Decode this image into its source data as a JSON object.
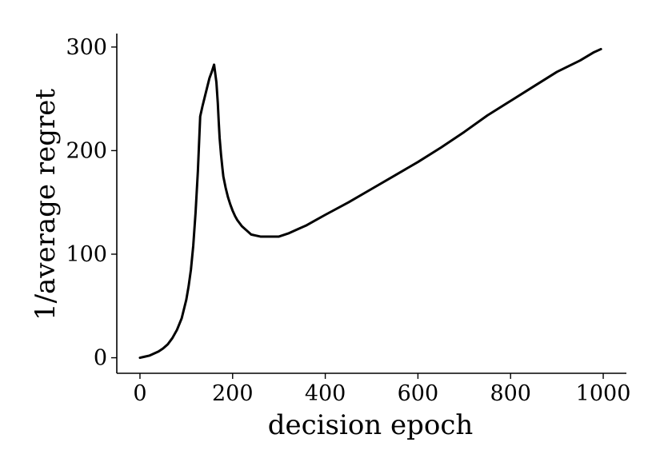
{
  "chart_data": {
    "type": "line",
    "title": "",
    "xlabel": "decision epoch",
    "ylabel": "1/average regret",
    "xlim": [
      -50,
      1050
    ],
    "ylim": [
      -15,
      313
    ],
    "xticks": [
      0,
      200,
      400,
      600,
      800,
      1000
    ],
    "yticks": [
      0,
      100,
      200,
      300
    ],
    "grid": false,
    "legend": "none",
    "line_color": "#000000",
    "series": [
      {
        "x": [
          0,
          10,
          20,
          30,
          40,
          50,
          60,
          70,
          80,
          90,
          100,
          105,
          110,
          115,
          120,
          125,
          130,
          135,
          140,
          145,
          150,
          155,
          160,
          165,
          168,
          170,
          172,
          175,
          178,
          180,
          185,
          190,
          195,
          200,
          205,
          210,
          220,
          230,
          240,
          250,
          260,
          270,
          280,
          290,
          300,
          320,
          340,
          360,
          380,
          400,
          450,
          500,
          550,
          600,
          650,
          700,
          750,
          800,
          850,
          900,
          950,
          980,
          995
        ],
        "values": [
          0,
          1,
          2,
          4,
          6,
          9,
          13,
          19,
          27,
          38,
          56,
          69,
          85,
          108,
          140,
          180,
          233,
          243,
          252,
          261,
          270,
          276,
          283,
          266,
          246,
          228,
          212,
          196,
          183,
          175,
          164,
          155,
          148,
          142,
          137,
          133,
          127,
          123,
          119,
          118,
          117,
          117,
          117,
          117,
          117,
          120,
          124,
          128,
          133,
          138,
          150,
          163,
          176,
          189,
          203,
          218,
          234,
          248,
          262,
          276,
          287,
          295,
          298
        ]
      }
    ]
  }
}
